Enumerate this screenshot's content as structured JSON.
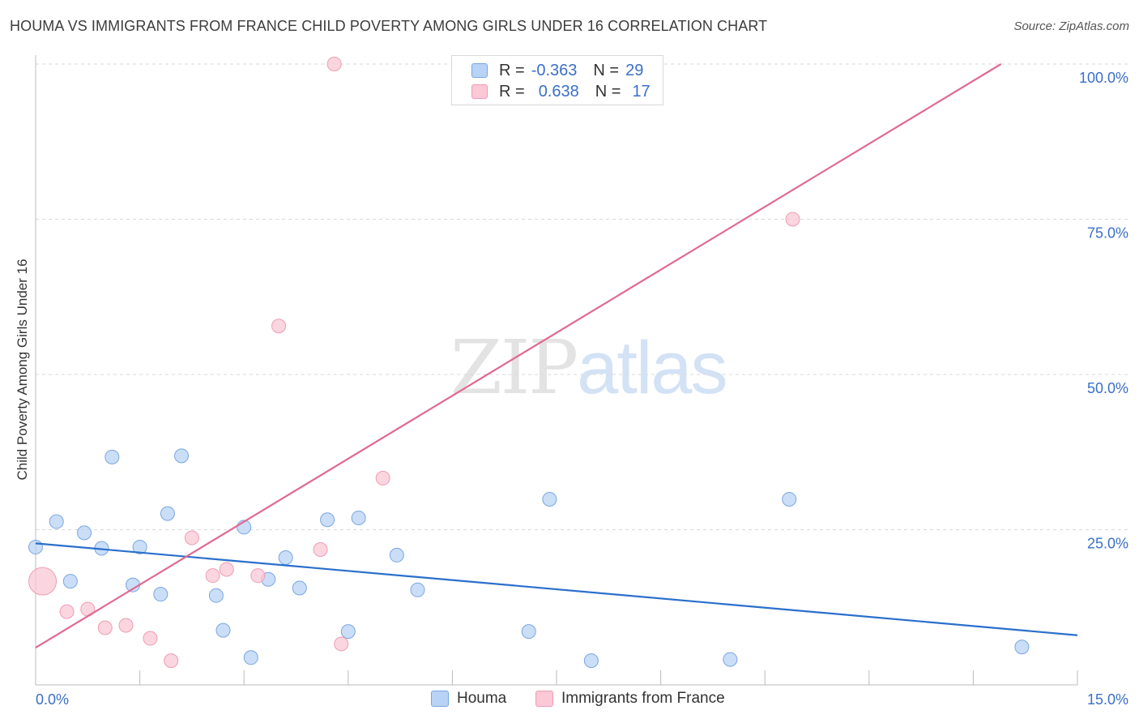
{
  "header": {
    "title": "HOUMA VS IMMIGRANTS FROM FRANCE CHILD POVERTY AMONG GIRLS UNDER 16 CORRELATION CHART",
    "source": "Source: ZipAtlas.com"
  },
  "watermark": {
    "zip": "ZIP",
    "atlas": "atlas"
  },
  "legend": {
    "houma": {
      "r_label": "R =",
      "r_value": "-0.363",
      "n_label": "N =",
      "n_value": "29"
    },
    "france": {
      "r_label": "R =",
      "r_value": "0.638",
      "n_label": "N =",
      "n_value": "17"
    }
  },
  "colors": {
    "houma_fill": "#b8d3f5",
    "houma_stroke": "#7aa6e0",
    "houma_line": "#2a6fcc",
    "france_fill": "#fac8d6",
    "france_stroke": "#ef9cb3",
    "france_line": "#e06a92",
    "tick_label": "#3b6fc9",
    "grid": "#d9d9d9"
  },
  "chart_data": {
    "type": "scatter",
    "title": "HOUMA VS IMMIGRANTS FROM FRANCE CHILD POVERTY AMONG GIRLS UNDER 16 CORRELATION CHART",
    "xlabel": "",
    "ylabel": "Child Poverty Among Girls Under 16",
    "xlim": [
      0,
      15
    ],
    "ylim": [
      0,
      100
    ],
    "x_tick_labels": [
      "0.0%",
      "15.0%"
    ],
    "y_ticks": [
      25,
      50,
      75,
      100
    ],
    "y_tick_labels": [
      "25.0%",
      "50.0%",
      "75.0%",
      "100.0%"
    ],
    "grid": true,
    "legend_labels": [
      "Houma",
      "Immigrants from France"
    ],
    "series": [
      {
        "name": "Houma",
        "r": -0.363,
        "n": 29,
        "trend": {
          "x": [
            0,
            15
          ],
          "y": [
            22.8,
            8.0
          ]
        },
        "points": [
          {
            "x": 0.0,
            "y": 22.2
          },
          {
            "x": 0.3,
            "y": 26.3
          },
          {
            "x": 0.5,
            "y": 16.7
          },
          {
            "x": 0.7,
            "y": 24.5
          },
          {
            "x": 0.95,
            "y": 22.0
          },
          {
            "x": 1.1,
            "y": 36.7
          },
          {
            "x": 1.4,
            "y": 16.1
          },
          {
            "x": 1.5,
            "y": 22.2
          },
          {
            "x": 1.8,
            "y": 14.6
          },
          {
            "x": 1.9,
            "y": 27.6
          },
          {
            "x": 2.1,
            "y": 36.9
          },
          {
            "x": 2.6,
            "y": 14.4
          },
          {
            "x": 2.7,
            "y": 8.8
          },
          {
            "x": 3.0,
            "y": 25.4
          },
          {
            "x": 3.1,
            "y": 4.4
          },
          {
            "x": 3.35,
            "y": 17.0
          },
          {
            "x": 3.6,
            "y": 20.5
          },
          {
            "x": 3.8,
            "y": 15.6
          },
          {
            "x": 4.2,
            "y": 26.6
          },
          {
            "x": 4.5,
            "y": 8.6
          },
          {
            "x": 4.65,
            "y": 26.9
          },
          {
            "x": 5.2,
            "y": 20.9
          },
          {
            "x": 5.5,
            "y": 15.3
          },
          {
            "x": 7.1,
            "y": 8.6
          },
          {
            "x": 7.4,
            "y": 29.9
          },
          {
            "x": 8.0,
            "y": 3.9
          },
          {
            "x": 10.0,
            "y": 4.1
          },
          {
            "x": 10.85,
            "y": 29.9
          },
          {
            "x": 14.2,
            "y": 6.1
          }
        ]
      },
      {
        "name": "Immigrants from France",
        "r": 0.638,
        "n": 17,
        "trend": {
          "x": [
            0,
            13.9
          ],
          "y": [
            6.0,
            100.0
          ]
        },
        "points": [
          {
            "x": 0.1,
            "y": 16.7,
            "big": true
          },
          {
            "x": 0.45,
            "y": 11.8
          },
          {
            "x": 0.75,
            "y": 12.2
          },
          {
            "x": 1.0,
            "y": 9.2
          },
          {
            "x": 1.3,
            "y": 9.6
          },
          {
            "x": 1.65,
            "y": 7.5
          },
          {
            "x": 1.95,
            "y": 3.9
          },
          {
            "x": 2.25,
            "y": 23.7
          },
          {
            "x": 2.55,
            "y": 17.6
          },
          {
            "x": 2.75,
            "y": 18.6
          },
          {
            "x": 3.2,
            "y": 17.6
          },
          {
            "x": 3.5,
            "y": 57.8
          },
          {
            "x": 4.1,
            "y": 21.8
          },
          {
            "x": 4.4,
            "y": 6.6
          },
          {
            "x": 4.3,
            "y": 100.0
          },
          {
            "x": 5.0,
            "y": 33.3
          },
          {
            "x": 10.9,
            "y": 75.0
          }
        ]
      }
    ]
  }
}
